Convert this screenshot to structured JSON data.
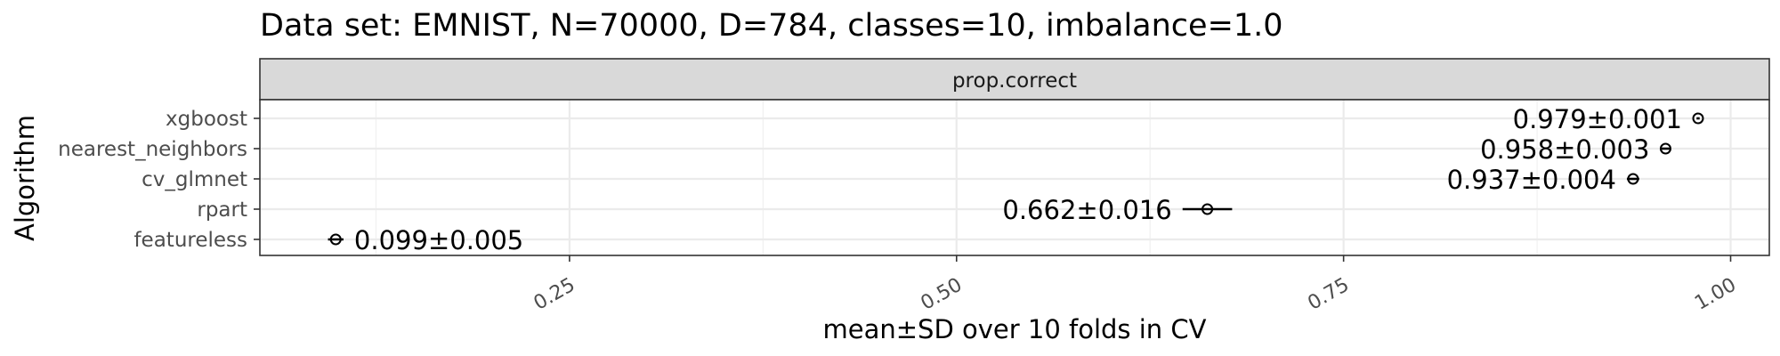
{
  "chart_data": {
    "type": "scatter",
    "title": "Data set: EMNIST, N=70000, D=784, classes=10, imbalance=1.0",
    "facet_label": "prop.correct",
    "xlabel": "mean±SD over 10 folds in CV",
    "ylabel": "Algorithm",
    "xlim": [
      0.05,
      1.025
    ],
    "x_ticks": [
      0.25,
      0.5,
      0.75,
      1.0
    ],
    "x_tick_labels": [
      "0.25",
      "0.50",
      "0.75",
      "1.00"
    ],
    "grid": true,
    "categories": [
      "xgboost",
      "nearest_neighbors",
      "cv_glmnet",
      "rpart",
      "featureless"
    ],
    "points": [
      {
        "algorithm": "xgboost",
        "mean": 0.979,
        "sd": 0.001,
        "label": "0.979±0.001"
      },
      {
        "algorithm": "nearest_neighbors",
        "mean": 0.958,
        "sd": 0.003,
        "label": "0.958±0.003"
      },
      {
        "algorithm": "cv_glmnet",
        "mean": 0.937,
        "sd": 0.004,
        "label": "0.937±0.004"
      },
      {
        "algorithm": "rpart",
        "mean": 0.662,
        "sd": 0.016,
        "label": "0.662±0.016"
      },
      {
        "algorithm": "featureless",
        "mean": 0.099,
        "sd": 0.005,
        "label": "0.099±0.005"
      }
    ]
  }
}
